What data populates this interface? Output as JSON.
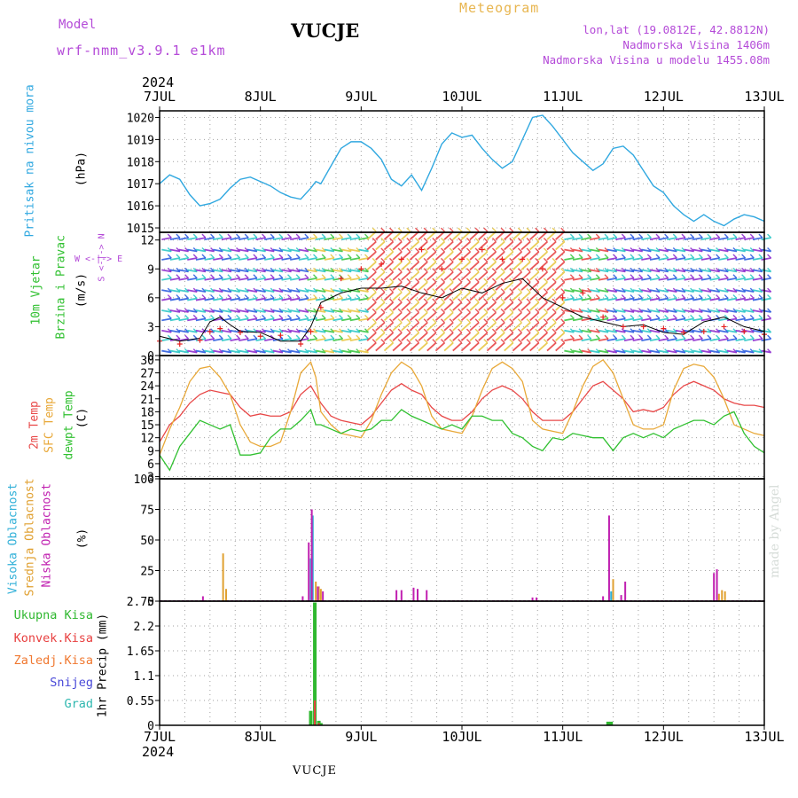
{
  "header": {
    "model_label": "Model",
    "model_name": "wrf-nmm_v3.9.1 e1km",
    "station": "VUCJE",
    "title": "Meteogram",
    "coords": "lon,lat (19.0812E, 42.8812N)",
    "elevation": "Nadmorska Visina 1406m",
    "model_elevation": "Nadmorska Visina u modelu 1455.08m",
    "year_top": "2024",
    "year_bottom": "2024",
    "station_bottom": "VUCJE",
    "credit": "made by Angel"
  },
  "colors": {
    "pressure": "#30a8e0",
    "t2m": "#e84848",
    "sfc": "#e8a838",
    "dewpt": "#30c030",
    "high_cloud": "#30b0d8",
    "mid_cloud": "#e0a030",
    "low_cloud": "#c020b0",
    "total_precip": "#30b830",
    "conv_precip": "#e84040",
    "frozen_precip": "#f07830",
    "snow": "#4848d8",
    "hail": "#30b8b0",
    "wind_cyan": "#30c8c8",
    "wind_blue": "#3060e0",
    "wind_purple": "#9030d0",
    "wind_green": "#40c848",
    "wind_yellow": "#e8c848",
    "wind_red": "#e84848",
    "wind_speed": "#000000",
    "wind_gust": "#e82020",
    "axis_label_purple": "#b44ad8"
  },
  "labels": {
    "pressure_title": "Pritisak na nivou mora",
    "pressure_unit": "(hPa)",
    "wind_title1": "10m Vjetar",
    "wind_title2": "Brzina i Pravac",
    "wind_unit": "(m/s)",
    "wind_compass_ns": "S <-|-> N",
    "wind_compass_we": "W <-|-> E",
    "temp_t2m": "2m Temp",
    "temp_sfc": "SFC Temp",
    "temp_dew": "dewpt Temp",
    "temp_unit": "(C)",
    "cloud_high": "Visoka Oblacnost",
    "cloud_mid": "Srednja Oblacnost",
    "cloud_low": "Niska Oblacnost",
    "cloud_unit": "(%)",
    "precip_axis": "1hr Precip (mm)",
    "precip_legend": [
      "Ukupna Kisa",
      "Konvek.Kisa",
      "Zaledj.Kisa",
      "Snijeg",
      "Grad"
    ]
  },
  "chart_data": [
    {
      "type": "line",
      "name": "pressure",
      "x_unit": "days since 7 JUL 00h",
      "x_ticks": [
        "7JUL",
        "8JUL",
        "9JUL",
        "10JUL",
        "11JUL",
        "12JUL",
        "13JUL"
      ],
      "ylim": [
        1014.8,
        1020.3
      ],
      "y_ticks": [
        1015,
        1016,
        1017,
        1018,
        1019,
        1020
      ],
      "grid": true,
      "series": [
        {
          "name": "Pritisak na nivou mora",
          "x": [
            0,
            0.1,
            0.2,
            0.3,
            0.4,
            0.5,
            0.6,
            0.7,
            0.8,
            0.9,
            1.0,
            1.1,
            1.2,
            1.3,
            1.4,
            1.5,
            1.55,
            1.6,
            1.7,
            1.8,
            1.9,
            2.0,
            2.1,
            2.2,
            2.3,
            2.4,
            2.5,
            2.6,
            2.7,
            2.8,
            2.9,
            3.0,
            3.1,
            3.2,
            3.3,
            3.4,
            3.5,
            3.6,
            3.7,
            3.8,
            3.9,
            4.0,
            4.1,
            4.2,
            4.3,
            4.4,
            4.5,
            4.6,
            4.7,
            4.8,
            4.9,
            5.0,
            5.1,
            5.2,
            5.3,
            5.4,
            5.5,
            5.6,
            5.7,
            5.8,
            5.9,
            6.0
          ],
          "values": [
            1017.0,
            1017.4,
            1017.2,
            1016.5,
            1016.0,
            1016.1,
            1016.3,
            1016.8,
            1017.2,
            1017.3,
            1017.1,
            1016.9,
            1016.6,
            1016.4,
            1016.3,
            1016.8,
            1017.1,
            1017.0,
            1017.8,
            1018.6,
            1018.9,
            1018.9,
            1018.6,
            1018.1,
            1017.2,
            1016.9,
            1017.4,
            1016.7,
            1017.7,
            1018.8,
            1019.3,
            1019.1,
            1019.2,
            1018.6,
            1018.1,
            1017.7,
            1018.0,
            1019.0,
            1020.0,
            1020.1,
            1019.6,
            1019.0,
            1018.4,
            1018.0,
            1017.6,
            1017.9,
            1018.6,
            1018.7,
            1018.3,
            1017.6,
            1016.9,
            1016.6,
            1016.0,
            1015.6,
            1015.3,
            1015.6,
            1015.3,
            1015.1,
            1015.4,
            1015.6,
            1015.5,
            1015.3
          ]
        }
      ]
    },
    {
      "type": "line",
      "name": "wind",
      "ylim": [
        0,
        12.8
      ],
      "y_ticks": [
        0,
        3,
        6,
        9,
        12
      ],
      "grid": true,
      "series": [
        {
          "name": "speed",
          "x": [
            0,
            0.2,
            0.4,
            0.5,
            0.6,
            0.7,
            0.8,
            1.0,
            1.2,
            1.4,
            1.5,
            1.6,
            1.8,
            2.0,
            2.2,
            2.4,
            2.6,
            2.8,
            3.0,
            3.2,
            3.4,
            3.6,
            3.8,
            4.0,
            4.2,
            4.4,
            4.6,
            4.8,
            5.0,
            5.2,
            5.4,
            5.6,
            5.8,
            6.0
          ],
          "values": [
            2,
            1.5,
            1.8,
            3.5,
            4,
            3.2,
            2.5,
            2.4,
            1.5,
            1.5,
            3,
            5.5,
            6.5,
            7,
            7,
            7.2,
            6.5,
            6,
            7,
            6.5,
            7.5,
            8,
            6,
            5,
            4,
            3.5,
            3,
            3.2,
            2.4,
            2.2,
            3.5,
            4,
            3,
            2.5
          ]
        },
        {
          "name": "gust",
          "x": [
            0,
            0.2,
            0.4,
            0.5,
            0.6,
            0.8,
            1.0,
            1.2,
            1.4,
            1.5,
            1.6,
            1.8,
            2.0,
            2.2,
            2.4,
            2.6,
            2.8,
            3.0,
            3.2,
            3.4,
            3.6,
            3.8,
            4.0,
            4.2,
            4.4,
            4.6,
            4.8,
            5.0,
            5.2,
            5.4,
            5.6,
            5.8,
            6.0
          ],
          "values": [
            1.5,
            1.2,
            1.6,
            2.5,
            2.8,
            2.4,
            2.0,
            2.1,
            1.2,
            2.5,
            5,
            8,
            9,
            9.5,
            10,
            11,
            9,
            10,
            11,
            10,
            10,
            9,
            6,
            6.5,
            4,
            3,
            3,
            2.8,
            2.4,
            2.5,
            3,
            2.5,
            2.2
          ]
        }
      ]
    },
    {
      "type": "line",
      "name": "temperature",
      "ylim": [
        2.5,
        31
      ],
      "y_ticks": [
        3,
        6,
        9,
        12,
        15,
        18,
        21,
        24,
        27,
        30
      ],
      "grid": true,
      "series": [
        {
          "name": "2m Temp",
          "x": [
            0,
            0.1,
            0.2,
            0.3,
            0.4,
            0.5,
            0.6,
            0.7,
            0.8,
            0.9,
            1.0,
            1.1,
            1.2,
            1.3,
            1.4,
            1.5,
            1.55,
            1.6,
            1.7,
            1.8,
            1.9,
            2.0,
            2.1,
            2.2,
            2.3,
            2.4,
            2.5,
            2.6,
            2.7,
            2.8,
            2.9,
            3.0,
            3.1,
            3.2,
            3.3,
            3.4,
            3.5,
            3.6,
            3.7,
            3.8,
            3.9,
            4.0,
            4.1,
            4.2,
            4.3,
            4.4,
            4.5,
            4.6,
            4.7,
            4.8,
            4.9,
            5.0,
            5.1,
            5.2,
            5.3,
            5.4,
            5.5,
            5.6,
            5.7,
            5.8,
            5.9,
            6.0
          ],
          "values": [
            11,
            15,
            17,
            20,
            22,
            23,
            22.5,
            22,
            19,
            17,
            17.5,
            17,
            17,
            18,
            22,
            24,
            22,
            20,
            17,
            16,
            15.5,
            15,
            17,
            20,
            23,
            24.5,
            23,
            22,
            19,
            17,
            16,
            16,
            18,
            21,
            23,
            24,
            23,
            21,
            18,
            16,
            16,
            16,
            18,
            21,
            24,
            25,
            23,
            21,
            18,
            18.5,
            18,
            19,
            22,
            24,
            25,
            24,
            23,
            21,
            20,
            19.5,
            19.5,
            19
          ]
        },
        {
          "name": "SFC Temp",
          "x": [
            0,
            0.1,
            0.2,
            0.3,
            0.4,
            0.5,
            0.6,
            0.7,
            0.8,
            0.9,
            1.0,
            1.1,
            1.2,
            1.3,
            1.4,
            1.5,
            1.55,
            1.6,
            1.7,
            1.8,
            1.9,
            2.0,
            2.1,
            2.2,
            2.3,
            2.4,
            2.5,
            2.6,
            2.7,
            2.8,
            2.9,
            3.0,
            3.1,
            3.2,
            3.3,
            3.4,
            3.5,
            3.6,
            3.7,
            3.8,
            3.9,
            4.0,
            4.1,
            4.2,
            4.3,
            4.4,
            4.5,
            4.6,
            4.7,
            4.8,
            4.9,
            5.0,
            5.1,
            5.2,
            5.3,
            5.4,
            5.5,
            5.6,
            5.7,
            5.8,
            5.9,
            6.0
          ],
          "values": [
            8,
            14,
            19,
            25,
            28,
            28.5,
            26,
            22,
            15,
            11,
            10,
            10,
            11,
            18,
            27,
            29.5,
            26,
            18,
            15,
            13,
            12.5,
            12,
            16,
            22,
            27,
            29.5,
            28,
            24,
            17,
            14,
            13.5,
            13,
            17,
            23,
            28,
            29.5,
            28,
            25,
            16,
            14,
            13.5,
            13,
            18,
            24,
            28.5,
            30,
            27,
            21,
            15,
            14,
            14,
            15,
            23,
            28,
            29,
            28.5,
            26,
            21,
            15,
            14,
            13,
            12.5
          ]
        },
        {
          "name": "dewpt Temp",
          "x": [
            0,
            0.1,
            0.2,
            0.3,
            0.4,
            0.5,
            0.6,
            0.7,
            0.8,
            0.9,
            1.0,
            1.1,
            1.2,
            1.3,
            1.4,
            1.5,
            1.55,
            1.6,
            1.7,
            1.8,
            1.9,
            2.0,
            2.1,
            2.2,
            2.3,
            2.4,
            2.5,
            2.6,
            2.7,
            2.8,
            2.9,
            3.0,
            3.1,
            3.2,
            3.3,
            3.4,
            3.5,
            3.6,
            3.7,
            3.8,
            3.9,
            4.0,
            4.1,
            4.2,
            4.3,
            4.4,
            4.5,
            4.6,
            4.7,
            4.8,
            4.9,
            5.0,
            5.1,
            5.2,
            5.3,
            5.4,
            5.5,
            5.6,
            5.7,
            5.8,
            5.9,
            6.0
          ],
          "values": [
            8,
            4.5,
            10,
            13,
            16,
            15,
            14,
            15,
            8,
            8,
            8.5,
            12,
            14,
            14,
            16,
            18.5,
            15,
            15,
            14,
            13,
            14,
            13.5,
            14,
            16,
            16,
            18.5,
            17,
            16,
            15,
            14,
            15,
            14,
            17,
            17,
            16,
            16,
            13,
            12,
            10,
            9,
            12,
            11.5,
            13,
            12.5,
            12,
            12,
            9,
            12,
            13,
            12,
            13,
            12,
            14,
            15,
            16,
            16,
            15,
            17,
            18,
            13,
            10,
            8.5
          ]
        }
      ]
    },
    {
      "type": "bar",
      "name": "cloud_cover",
      "ylim": [
        0,
        100
      ],
      "y_ticks": [
        0,
        25,
        50,
        75,
        100
      ],
      "grid": true,
      "series": [
        {
          "name": "Visoka Oblacnost",
          "x": [
            1.5,
            1.52,
            4.48
          ],
          "values": [
            35,
            70,
            8
          ]
        },
        {
          "name": "Srednja Oblacnost",
          "x": [
            0.63,
            0.66,
            1.55,
            1.58,
            1.6,
            4.5,
            5.55,
            5.58,
            5.61
          ],
          "values": [
            39,
            10,
            16,
            12,
            10,
            18,
            6,
            9,
            8
          ]
        },
        {
          "name": "Niska Oblacnost",
          "x": [
            0.43,
            1.42,
            1.48,
            1.51,
            1.57,
            1.62,
            2.35,
            2.4,
            2.52,
            2.56,
            2.65,
            3.7,
            3.74,
            4.4,
            4.46,
            4.58,
            4.62,
            5.5,
            5.53
          ],
          "values": [
            4,
            4,
            48,
            75,
            12,
            8,
            9,
            9,
            11,
            10,
            9,
            3,
            3,
            4,
            70,
            5,
            16,
            23,
            26
          ]
        }
      ]
    },
    {
      "type": "bar",
      "name": "precipitation",
      "ylim": [
        0,
        2.75
      ],
      "y_ticks": [
        0,
        0.55,
        1.1,
        1.65,
        2.2,
        2.75
      ],
      "grid": true,
      "series": [
        {
          "name": "Ukupna Kisa",
          "x": [
            1.5,
            1.54,
            1.58,
            1.6,
            4.45,
            4.48
          ],
          "values": [
            0.32,
            2.72,
            0.1,
            0.05,
            0.08,
            0.08
          ]
        },
        {
          "name": "Konvek.Kisa",
          "x": [
            1.54,
            1.58
          ],
          "values": [
            0.55,
            0.05
          ]
        }
      ]
    }
  ]
}
